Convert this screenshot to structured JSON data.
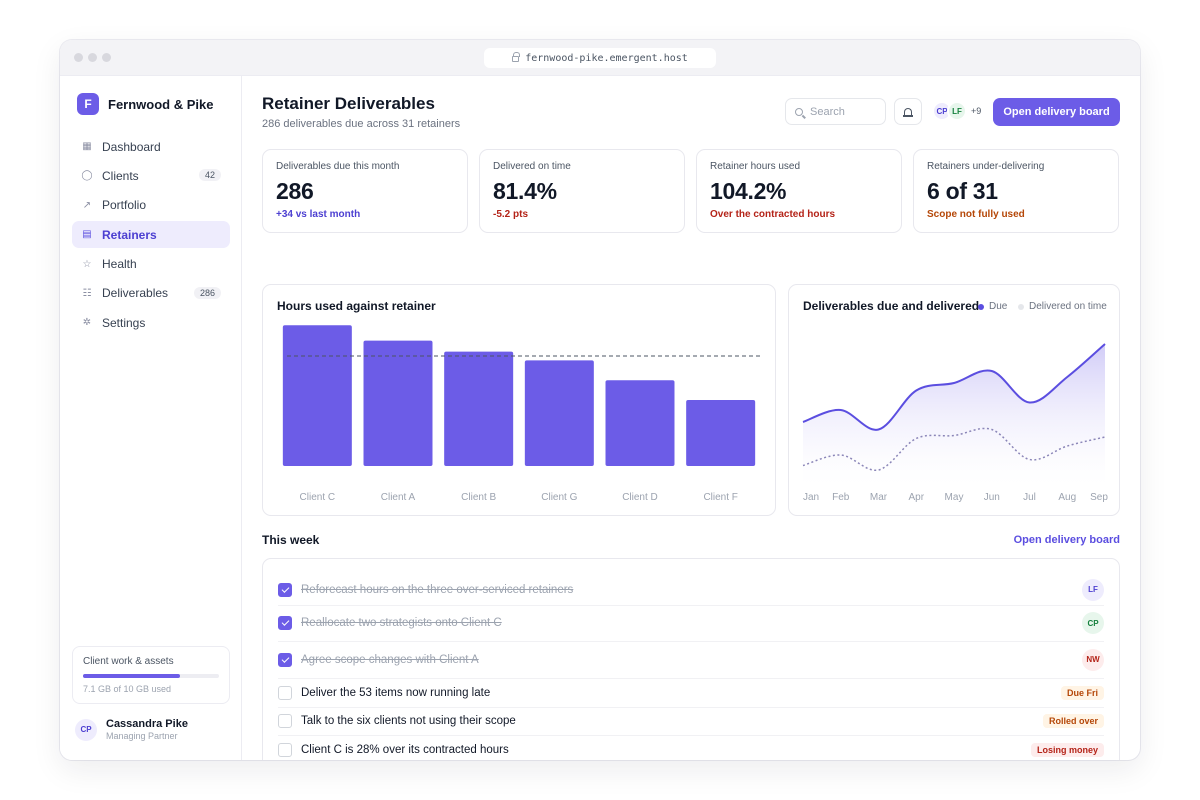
{
  "browser": {
    "url": "fernwood-pike.emergent.host"
  },
  "sidebar": {
    "brand_initial": "F",
    "brand_name": "Fernwood & Pike",
    "items": [
      {
        "label": "Dashboard",
        "icon": "grid-icon"
      },
      {
        "label": "Clients",
        "icon": "user-icon",
        "badge": "42"
      },
      {
        "label": "Portfolio",
        "icon": "trend-icon"
      },
      {
        "label": "Retainers",
        "icon": "receipt-icon",
        "active": true
      },
      {
        "label": "Health",
        "icon": "star-icon"
      },
      {
        "label": "Deliverables",
        "icon": "checklist-icon",
        "badge": "286"
      },
      {
        "label": "Settings",
        "icon": "gear-icon"
      }
    ],
    "storage": {
      "title": "Client work & assets",
      "used_fraction": 0.71,
      "subtitle": "7.1 GB of 10 GB used"
    },
    "user": {
      "initials": "CP",
      "name": "Cassandra Pike",
      "role": "Managing Partner"
    }
  },
  "header": {
    "title": "Retainer Deliverables",
    "subtitle": "286 deliverables due across 31 retainers",
    "search_placeholder": "Search",
    "avatars": [
      "CP",
      "LF"
    ],
    "avatars_more": "+9",
    "primary_button": "Open delivery board"
  },
  "kpis": [
    {
      "label": "Deliverables due this month",
      "value": "286",
      "note": "+34 vs last month",
      "note_color": "#4c3fd1"
    },
    {
      "label": "Delivered on time",
      "value": "81.4%",
      "note": "-5.2 pts",
      "note_color": "#b42318"
    },
    {
      "label": "Retainer hours used",
      "value": "104.2%",
      "note": "Over the contracted hours",
      "note_color": "#b42318"
    },
    {
      "label": "Retainers under-delivering",
      "value": "6 of 31",
      "note": "Scope not fully used",
      "note_color": "#b54708"
    }
  ],
  "colors": {
    "accent": "#6c5ce7",
    "bar": "#6c5ce7",
    "line_due": "#5b4ee0",
    "line_delivered": "#8b86b8"
  },
  "chart_data": [
    {
      "type": "bar",
      "title": "Hours used against retainer",
      "categories": [
        "Client C",
        "Client A",
        "Client B",
        "Client G",
        "Client D",
        "Client F"
      ],
      "values": [
        128,
        114,
        104,
        96,
        78,
        60
      ],
      "reference_line": 100,
      "ylim": [
        0,
        130
      ]
    },
    {
      "type": "area",
      "title": "Deliverables due and delivered",
      "x": [
        "Jan",
        "Feb",
        "Mar",
        "Apr",
        "May",
        "Jun",
        "Jul",
        "Aug",
        "Sep"
      ],
      "series": [
        {
          "name": "Due",
          "values": [
            42,
            50,
            37,
            63,
            68,
            76,
            55,
            72,
            94
          ]
        },
        {
          "name": "Delivered on time",
          "values": [
            13,
            20,
            10,
            31,
            33,
            37,
            17,
            26,
            32
          ]
        }
      ],
      "ylim": [
        0,
        100
      ]
    }
  ],
  "tasks": {
    "section_title": "This week",
    "link": "Open delivery board",
    "items": [
      {
        "text": "Reforecast hours on the three over-serviced retainers",
        "done": true,
        "assignee": "LF",
        "chip_bg": "#eeecfd",
        "chip_fg": "#4c3fd1"
      },
      {
        "text": "Reallocate two strategists onto Client C",
        "done": true,
        "assignee": "CP",
        "chip_bg": "#e7f6ec",
        "chip_fg": "#15803d"
      },
      {
        "text": "Agree scope changes with Client A",
        "done": true,
        "assignee": "NW",
        "chip_bg": "#fdecec",
        "chip_fg": "#b42318"
      },
      {
        "text": "Deliver the 53 items now running late",
        "done": false,
        "tag": "Due Fri",
        "tag_bg": "#fff4e5",
        "tag_fg": "#b54708"
      },
      {
        "text": "Talk to the six clients not using their scope",
        "done": false,
        "tag": "Rolled over",
        "tag_bg": "#fff4e5",
        "tag_fg": "#b54708"
      },
      {
        "text": "Client C is 28% over its contracted hours",
        "done": false,
        "tag": "Losing money",
        "tag_bg": "#fdecec",
        "tag_fg": "#b42318"
      }
    ]
  }
}
